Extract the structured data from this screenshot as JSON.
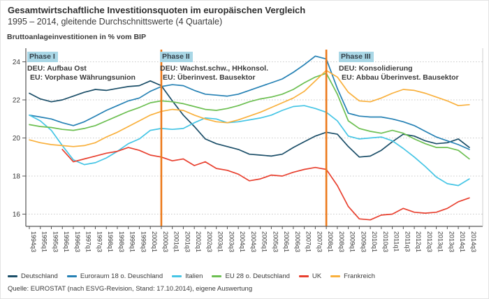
{
  "header": {
    "title": "Gesamtwirtschaftliche Investitionsquoten im europäischen Vergleich",
    "subtitle": "1995 – 2014, gleitende Durchschnittswerte (4 Quartale)"
  },
  "axis_title": "Bruttoanlageinvestitionen in % vom BIP",
  "source": "Quelle: EUROSTAT (nach ESVG-Revision, Stand: 17.10.2014), eigene Auswertung",
  "phases": [
    {
      "label": "Phase I",
      "line1": "DEU: Aufbau Ost",
      "line2": "EU: Vorphase Währungsunion"
    },
    {
      "label": "Phase II",
      "line1": "DEU: Wachst.schw., HHkonsol.",
      "line2": "EU: Überinvest. Bausektor"
    },
    {
      "label": "Phase III",
      "line1": "DEU: Konsolidierung",
      "line2": "EU: Abbau Überinvest. Bausektor"
    }
  ],
  "colors": {
    "phase_tag_bg": "#a9d7e6",
    "phase_vline": "#ec7a1c",
    "grid": "#c8c8c8",
    "axis": "#555555",
    "text": "#3a3a3a"
  },
  "chart_data": {
    "type": "line",
    "title": "Gesamtwirtschaftliche Investitionsquoten im europäischen Vergleich",
    "xlabel": "",
    "ylabel": "Bruttoanlageinvestitionen in % vom BIP",
    "ylim": [
      15.35,
      24.72
    ],
    "yticks": [
      16,
      18,
      20,
      22,
      24
    ],
    "grid": "horizontal-dotted",
    "legend_position": "bottom",
    "phase_vlines": [
      "2000q3",
      "2008q1"
    ],
    "categories": [
      "1994q3",
      "1995q1",
      "1995q3",
      "1996q1",
      "1996q3",
      "1997q1",
      "1997q3",
      "1998q1",
      "1998q3",
      "1999q1",
      "1999q3",
      "2000q1",
      "2000q3",
      "2001q1",
      "2001q3",
      "2002q1",
      "2002q3",
      "2003q1",
      "2003q3",
      "2004q1",
      "2004q3",
      "2005q1",
      "2005q3",
      "2006q1",
      "2006q3",
      "2007q1",
      "2007q3",
      "2008q1",
      "2008q3",
      "2009q1",
      "2009q3",
      "2010q1",
      "2010q3",
      "2011q1",
      "2011q3",
      "2012q1",
      "2012q3",
      "2013q1",
      "2013q3",
      "2014q1",
      "2014q3"
    ],
    "series": [
      {
        "name": "Deutschland",
        "color": "#1b4e68",
        "values": [
          22.35,
          22.05,
          21.9,
          22.0,
          22.2,
          22.4,
          22.55,
          22.5,
          22.6,
          22.7,
          22.75,
          23.0,
          22.75,
          21.95,
          21.2,
          20.6,
          19.95,
          19.7,
          19.55,
          19.4,
          19.15,
          19.1,
          19.05,
          19.15,
          19.5,
          19.8,
          20.1,
          20.3,
          20.2,
          19.55,
          19.0,
          19.05,
          19.35,
          19.8,
          20.2,
          20.1,
          19.85,
          19.7,
          19.75,
          19.95,
          19.5
        ]
      },
      {
        "name": "Euroraum 18 o. Deuschland",
        "color": "#2581b4",
        "values": [
          21.2,
          21.1,
          21.0,
          20.8,
          20.65,
          20.85,
          21.15,
          21.45,
          21.7,
          21.95,
          22.1,
          22.45,
          22.7,
          22.8,
          22.75,
          22.5,
          22.3,
          22.25,
          22.2,
          22.3,
          22.5,
          22.7,
          22.9,
          23.1,
          23.45,
          23.85,
          24.3,
          24.15,
          22.6,
          21.3,
          21.15,
          21.1,
          21.1,
          21.0,
          20.85,
          20.65,
          20.35,
          20.05,
          19.85,
          19.65,
          19.4
        ]
      },
      {
        "name": "Italien",
        "color": "#45c5e5",
        "values": [
          21.2,
          20.9,
          20.4,
          19.6,
          18.85,
          18.6,
          18.7,
          18.95,
          19.3,
          19.7,
          19.95,
          20.4,
          20.5,
          20.45,
          20.5,
          20.8,
          21.05,
          21.0,
          20.8,
          20.85,
          20.95,
          21.05,
          21.2,
          21.45,
          21.65,
          21.7,
          21.55,
          21.35,
          20.9,
          20.1,
          19.95,
          20.0,
          20.05,
          19.85,
          19.45,
          19.0,
          18.5,
          17.95,
          17.6,
          17.5,
          17.85
        ]
      },
      {
        "name": "EU 28 o. Deutschland",
        "color": "#6cbf51",
        "values": [
          20.7,
          20.6,
          20.55,
          20.45,
          20.4,
          20.5,
          20.65,
          20.9,
          21.15,
          21.4,
          21.6,
          21.85,
          21.95,
          21.9,
          21.8,
          21.65,
          21.5,
          21.45,
          21.55,
          21.7,
          21.9,
          22.05,
          22.15,
          22.3,
          22.55,
          22.9,
          23.2,
          23.4,
          22.3,
          20.9,
          20.5,
          20.35,
          20.25,
          20.4,
          20.25,
          19.95,
          19.7,
          19.5,
          19.5,
          19.35,
          18.9
        ]
      },
      {
        "name": "UK",
        "color": "#e8402f",
        "values": [
          null,
          null,
          null,
          19.4,
          18.75,
          18.9,
          19.05,
          19.2,
          19.3,
          19.5,
          19.35,
          19.1,
          19.0,
          18.8,
          18.9,
          18.55,
          18.75,
          18.4,
          18.3,
          18.1,
          17.75,
          17.85,
          18.05,
          18.0,
          18.2,
          18.35,
          18.45,
          18.35,
          17.5,
          16.4,
          15.75,
          15.7,
          15.95,
          16.0,
          16.3,
          16.1,
          16.05,
          16.1,
          16.3,
          16.65,
          16.85
        ]
      },
      {
        "name": "Frankreich",
        "color": "#f9b03c",
        "values": [
          19.9,
          19.75,
          19.65,
          19.6,
          19.55,
          19.6,
          19.75,
          20.05,
          20.3,
          20.6,
          20.9,
          21.2,
          21.4,
          21.5,
          21.45,
          21.2,
          21.0,
          20.85,
          20.8,
          20.95,
          21.15,
          21.35,
          21.6,
          21.85,
          22.1,
          22.45,
          23.0,
          23.55,
          23.2,
          22.4,
          21.95,
          21.9,
          22.1,
          22.35,
          22.55,
          22.5,
          22.35,
          22.15,
          21.95,
          21.7,
          21.75
        ]
      }
    ]
  }
}
